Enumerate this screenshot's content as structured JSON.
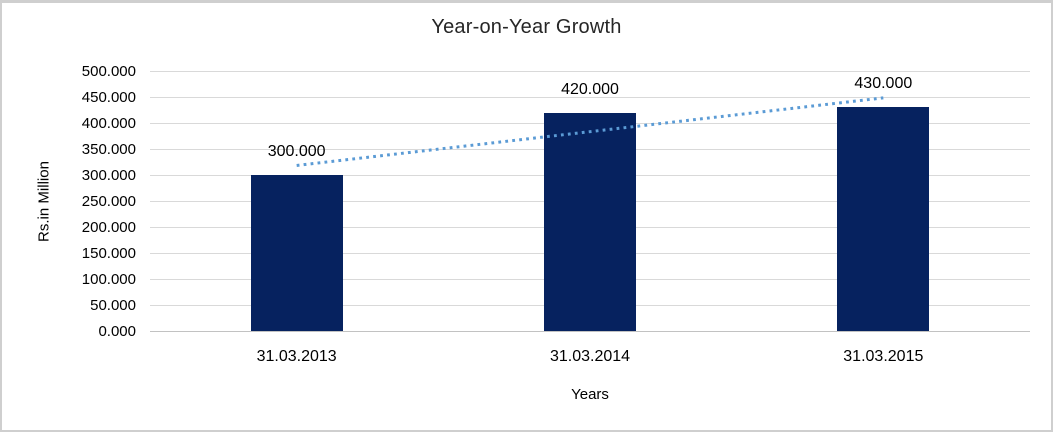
{
  "chart_data": {
    "type": "bar",
    "title": "Year-on-Year Growth",
    "categories": [
      "31.03.2013",
      "31.03.2014",
      "31.03.2015"
    ],
    "values": [
      300,
      420,
      430
    ],
    "value_labels": [
      "300.000",
      "420.000",
      "430.000"
    ],
    "xlabel": "Years",
    "ylabel": "Rs.in Million",
    "ylim": [
      0,
      500
    ],
    "ytick_step": 50,
    "ytick_labels": [
      "500.000",
      "450.000",
      "400.000",
      "350.000",
      "300.000",
      "250.000",
      "200.000",
      "150.000",
      "100.000",
      "50.000",
      "0.000"
    ],
    "grid": true,
    "legend": "none",
    "trendline": {
      "type": "linear",
      "style": "dotted"
    },
    "colors": {
      "bar": "#06225f",
      "trend": "#5b9bd5",
      "gridline": "#d9d9d9",
      "baseline": "#c2c2c2",
      "text": "#000000",
      "title_text": "#262626",
      "frame_border": "#cfcfcf",
      "background": "#ffffff"
    }
  }
}
